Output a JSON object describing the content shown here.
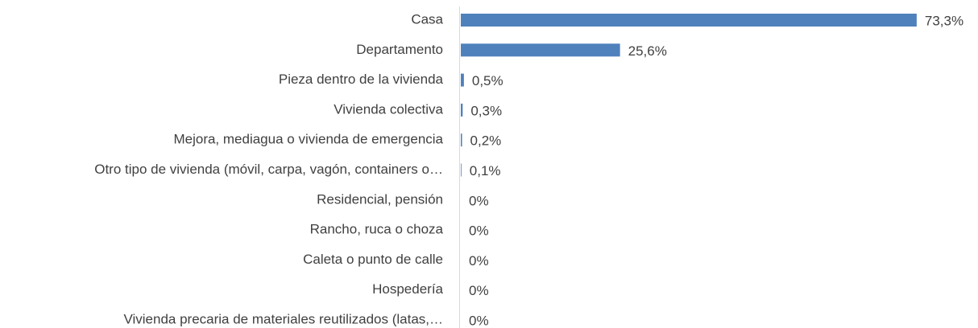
{
  "chart_data": {
    "type": "bar",
    "orientation": "horizontal",
    "color": "#4f81bd",
    "categories": [
      "Casa",
      "Departamento",
      "Pieza dentro de la vivienda",
      "Vivienda colectiva",
      "Mejora, mediagua o vivienda de emergencia",
      "Otro tipo de vivienda (móvil, carpa, vagón, containers o…",
      "Residencial, pensión",
      "Rancho, ruca o choza",
      "Caleta o punto de calle",
      "Hospedería",
      "Vivienda precaria de materiales reutilizados (latas,…"
    ],
    "values": [
      73.3,
      25.6,
      0.5,
      0.3,
      0.2,
      0.1,
      0,
      0,
      0,
      0,
      0
    ],
    "value_labels": [
      "73,3%",
      "25,6%",
      "0,5%",
      "0,3%",
      "0,2%",
      "0,1%",
      "0%",
      "0%",
      "0%",
      "0%",
      "0%"
    ]
  }
}
